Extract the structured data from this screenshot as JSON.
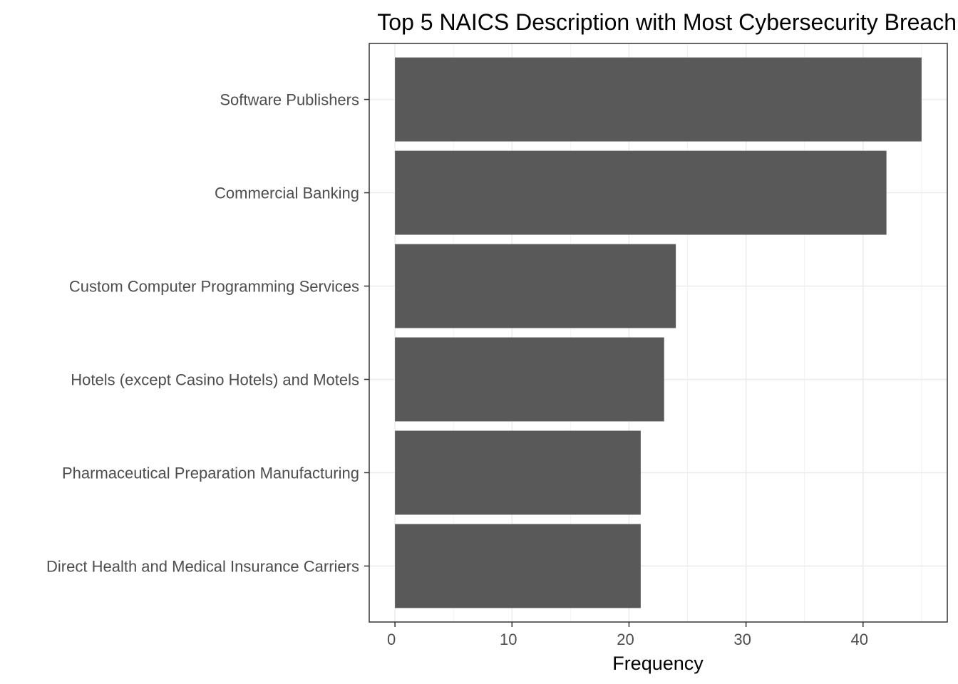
{
  "chart_data": {
    "type": "bar",
    "orientation": "horizontal",
    "title": "Top 5 NAICS Description with Most Cybersecurity Breach",
    "xlabel": "Frequency",
    "ylabel": "",
    "categories": [
      "Software Publishers",
      "Commercial Banking",
      "Custom Computer Programming Services",
      "Hotels (except Casino Hotels) and Motels",
      "Pharmaceutical Preparation Manufacturing",
      "Direct Health and Medical Insurance Carriers"
    ],
    "values": [
      45,
      42,
      24,
      23,
      21,
      21
    ],
    "xlim": [
      -2.2,
      47.2
    ],
    "xticks": [
      0,
      10,
      20,
      30,
      40
    ],
    "xtick_labels": [
      "0",
      "10",
      "20",
      "30",
      "40"
    ],
    "grid": true,
    "legend": "none",
    "colors": {
      "bar": "#595959",
      "background": "#ffffff",
      "grid": "#ebebeb",
      "border": "#333333",
      "tick_text": "#4d4d4d",
      "title_text": "#000000"
    }
  }
}
